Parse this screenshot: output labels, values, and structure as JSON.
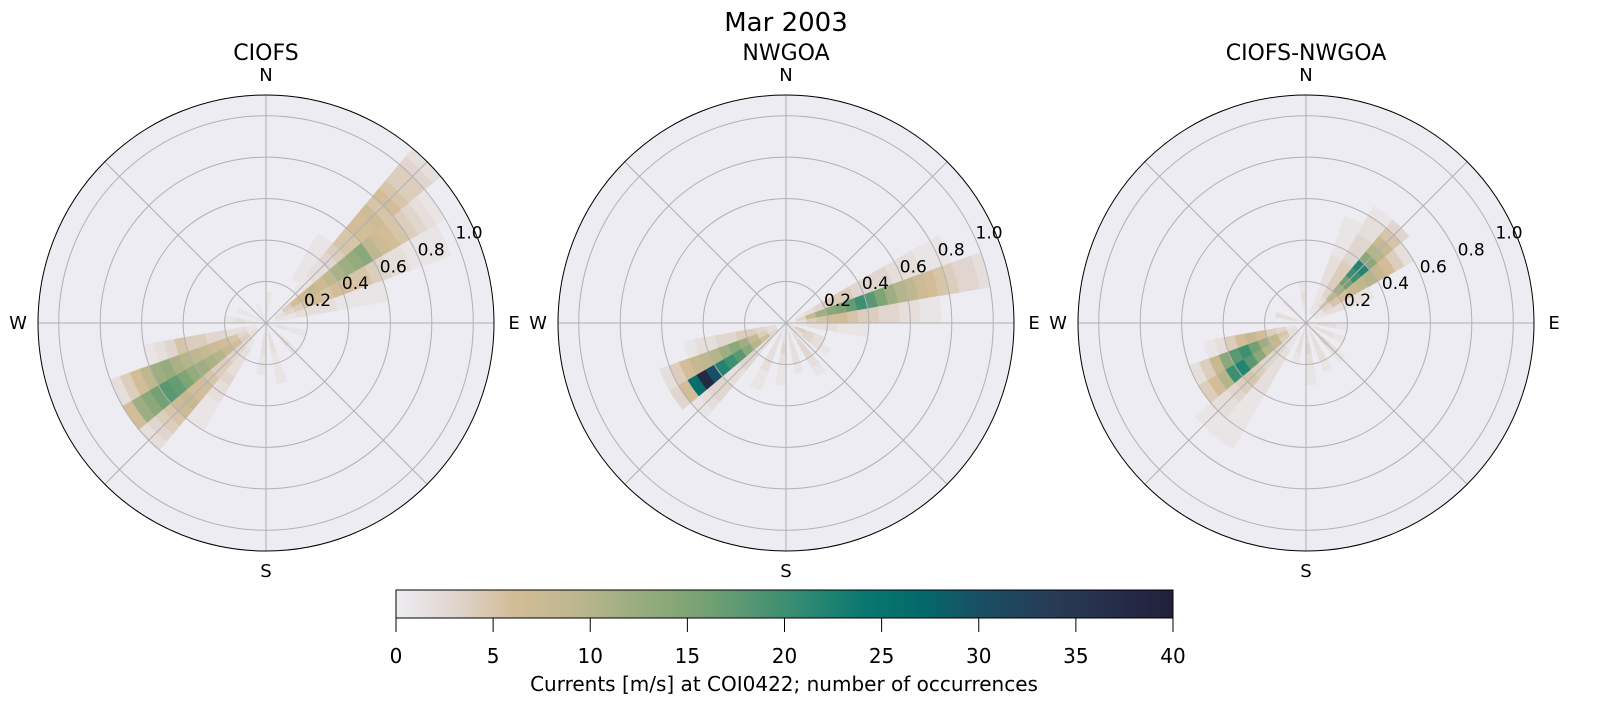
{
  "chart_data": {
    "type": "heatmap",
    "subtype": "polar-rose-histogram",
    "title": "Mar 2003",
    "direction_labels": [
      "N",
      "E",
      "S",
      "W"
    ],
    "radial_ticks": [
      "0.2",
      "0.4",
      "0.6",
      "0.8",
      "1.0"
    ],
    "radial_tick_values": [
      0.2,
      0.4,
      0.6,
      0.8,
      1.0
    ],
    "rmax": 1.1,
    "speed_bin_width": 0.05,
    "direction_bin_width_deg": 10,
    "colorbar": {
      "label": "Currents [m/s] at COI0422; number of occurrences",
      "range": [
        0,
        40
      ],
      "ticks": [
        "0",
        "5",
        "10",
        "15",
        "20",
        "25",
        "30",
        "35",
        "40"
      ],
      "tick_values": [
        0,
        5,
        10,
        15,
        20,
        25,
        30,
        35,
        40
      ],
      "stops": [
        [
          0,
          "#eeedf2"
        ],
        [
          3,
          "#e0d6cf"
        ],
        [
          6,
          "#d3bc98"
        ],
        [
          9,
          "#bfb88f"
        ],
        [
          12,
          "#9fae82"
        ],
        [
          15,
          "#7fa574"
        ],
        [
          18,
          "#5a9873"
        ],
        [
          21,
          "#2f8a72"
        ],
        [
          24,
          "#0b786f"
        ],
        [
          27,
          "#036a6a"
        ],
        [
          30,
          "#194f63"
        ],
        [
          34,
          "#283a55"
        ],
        [
          40,
          "#22203b"
        ]
      ]
    },
    "panels": [
      {
        "title": "CIOFS",
        "sectors": [
          {
            "dir": 35,
            "counts": [
              0,
              0,
              0,
              0,
              0,
              1,
              1,
              1,
              1,
              1
            ]
          },
          {
            "dir": 45,
            "counts": [
              0,
              0,
              0,
              0,
              1,
              1,
              2,
              2,
              3,
              4,
              5,
              5,
              6,
              6,
              7,
              5,
              6,
              5,
              4,
              4,
              3,
              2
            ]
          },
          {
            "dir": 55,
            "counts": [
              0,
              1,
              4,
              6,
              7,
              8,
              7,
              9,
              11,
              12,
              13,
              14,
              9,
              7,
              6,
              5,
              4,
              3,
              2,
              1
            ]
          },
          {
            "dir": 65,
            "counts": [
              0,
              2,
              3,
              4,
              5,
              6,
              5,
              6,
              6,
              5,
              5,
              4,
              3,
              2,
              2,
              1,
              1,
              1,
              1
            ]
          },
          {
            "dir": 75,
            "counts": [
              0,
              1,
              1,
              2,
              2,
              2,
              2,
              1,
              1,
              1,
              1,
              1
            ]
          },
          {
            "dir": 215,
            "counts": [
              0,
              0,
              1,
              2,
              2,
              2,
              3,
              2,
              2,
              1,
              1,
              1
            ]
          },
          {
            "dir": 225,
            "counts": [
              0,
              1,
              2,
              3,
              3,
              4,
              4,
              5,
              6,
              6,
              8,
              7,
              5,
              4,
              3,
              2
            ]
          },
          {
            "dir": 235,
            "counts": [
              0,
              2,
              4,
              6,
              8,
              10,
              11,
              12,
              13,
              15,
              17,
              18,
              16,
              14,
              12,
              6
            ]
          },
          {
            "dir": 245,
            "counts": [
              0,
              1,
              3,
              5,
              6,
              7,
              8,
              9,
              10,
              11,
              13,
              12,
              9,
              6,
              4,
              2
            ]
          },
          {
            "dir": 255,
            "counts": [
              0,
              1,
              2,
              2,
              3,
              3,
              4,
              4,
              5,
              3,
              2,
              1
            ]
          },
          {
            "dir": 185,
            "counts": [
              1,
              2,
              2,
              1,
              1
            ]
          },
          {
            "dir": 165,
            "counts": [
              1,
              2,
              2,
              1,
              1,
              1
            ]
          },
          {
            "dir": 135,
            "counts": [
              1,
              1,
              2,
              1
            ]
          },
          {
            "dir": 105,
            "counts": [
              1,
              2,
              1,
              1
            ]
          },
          {
            "dir": 5,
            "counts": [
              1,
              1,
              1
            ]
          },
          {
            "dir": 335,
            "counts": [
              1,
              1
            ]
          },
          {
            "dir": 295,
            "counts": [
              1,
              1,
              1
            ]
          },
          {
            "dir": 275,
            "counts": [
              1,
              1,
              2,
              1
            ]
          }
        ]
      },
      {
        "title": "NWGOA",
        "sectors": [
          {
            "dir": 65,
            "counts": [
              0,
              1,
              2,
              3,
              4,
              4,
              4,
              3,
              3,
              3,
              3,
              2,
              2,
              2,
              1,
              1,
              1
            ]
          },
          {
            "dir": 75,
            "counts": [
              0,
              3,
              8,
              12,
              14,
              15,
              17,
              20,
              18,
              15,
              12,
              10,
              9,
              7,
              6,
              5,
              4,
              3,
              3,
              2
            ]
          },
          {
            "dir": 85,
            "counts": [
              0,
              2,
              4,
              5,
              6,
              6,
              5,
              4,
              4,
              3,
              3,
              2,
              2,
              1,
              1
            ]
          },
          {
            "dir": 95,
            "counts": [
              0,
              1,
              2,
              2,
              2,
              1,
              1,
              1
            ]
          },
          {
            "dir": 225,
            "counts": [
              0,
              1,
              2,
              2,
              3,
              3,
              2,
              2,
              3,
              3,
              2,
              1
            ]
          },
          {
            "dir": 235,
            "counts": [
              0,
              3,
              6,
              10,
              14,
              18,
              20,
              22,
              30,
              38,
              26,
              6,
              3
            ]
          },
          {
            "dir": 245,
            "counts": [
              0,
              2,
              4,
              8,
              12,
              14,
              12,
              10,
              9,
              8,
              6,
              4,
              2
            ]
          },
          {
            "dir": 255,
            "counts": [
              0,
              2,
              3,
              4,
              4,
              3,
              3,
              2,
              2,
              1
            ]
          },
          {
            "dir": 205,
            "counts": [
              1,
              2,
              2,
              2,
              2,
              1,
              1
            ]
          },
          {
            "dir": 185,
            "counts": [
              1,
              2,
              3,
              2,
              1,
              1
            ]
          },
          {
            "dir": 165,
            "counts": [
              1,
              2,
              2,
              2,
              1
            ]
          },
          {
            "dir": 145,
            "counts": [
              1,
              2,
              3,
              3,
              2,
              1
            ]
          },
          {
            "dir": 125,
            "counts": [
              1,
              2,
              3,
              2,
              1
            ]
          },
          {
            "dir": 115,
            "counts": [
              2,
              4,
              3,
              2
            ]
          }
        ]
      },
      {
        "title": "CIOFS-NWGOA",
        "sectors": [
          {
            "dir": 25,
            "counts": [
              0,
              1,
              1,
              1,
              2,
              2,
              2,
              1,
              1,
              1,
              1
            ]
          },
          {
            "dir": 35,
            "counts": [
              0,
              1,
              2,
              3,
              4,
              4,
              4,
              3,
              3,
              3,
              2,
              2,
              1
            ]
          },
          {
            "dir": 45,
            "counts": [
              0,
              2,
              4,
              8,
              12,
              16,
              20,
              22,
              14,
              10,
              8,
              5,
              3
            ]
          },
          {
            "dir": 55,
            "counts": [
              0,
              1,
              3,
              5,
              6,
              8,
              9,
              10,
              8,
              6,
              4,
              2
            ]
          },
          {
            "dir": 65,
            "counts": [
              0,
              1,
              2,
              2,
              2,
              2,
              1
            ]
          },
          {
            "dir": 215,
            "counts": [
              0,
              1,
              1,
              2,
              2,
              2,
              2,
              2,
              1,
              1,
              1,
              1,
              1,
              1
            ]
          },
          {
            "dir": 225,
            "counts": [
              0,
              1,
              2,
              3,
              3,
              3,
              4,
              5,
              4,
              3,
              2,
              2,
              1,
              1
            ]
          },
          {
            "dir": 235,
            "counts": [
              0,
              2,
              4,
              8,
              10,
              14,
              18,
              22,
              20,
              10,
              6,
              4
            ]
          },
          {
            "dir": 245,
            "counts": [
              0,
              2,
              5,
              9,
              12,
              16,
              20,
              18,
              14,
              8,
              4,
              2
            ]
          },
          {
            "dir": 255,
            "counts": [
              0,
              1,
              3,
              4,
              6,
              8,
              6,
              4,
              2,
              1
            ]
          },
          {
            "dir": 135,
            "counts": [
              1,
              2,
              3,
              2,
              1
            ]
          },
          {
            "dir": 155,
            "counts": [
              1,
              2,
              2,
              2,
              1
            ]
          },
          {
            "dir": 175,
            "counts": [
              1,
              2,
              3,
              2,
              1,
              1
            ]
          },
          {
            "dir": 195,
            "counts": [
              1,
              2,
              2,
              1
            ]
          },
          {
            "dir": 355,
            "counts": [
              1,
              1,
              2,
              1
            ]
          },
          {
            "dir": 315,
            "counts": [
              1,
              1,
              1
            ]
          },
          {
            "dir": 285,
            "counts": [
              1,
              2,
              2
            ]
          },
          {
            "dir": 95,
            "counts": [
              1,
              2,
              2,
              1
            ]
          },
          {
            "dir": 115,
            "counts": [
              1,
              2,
              2,
              1
            ]
          }
        ]
      }
    ]
  }
}
